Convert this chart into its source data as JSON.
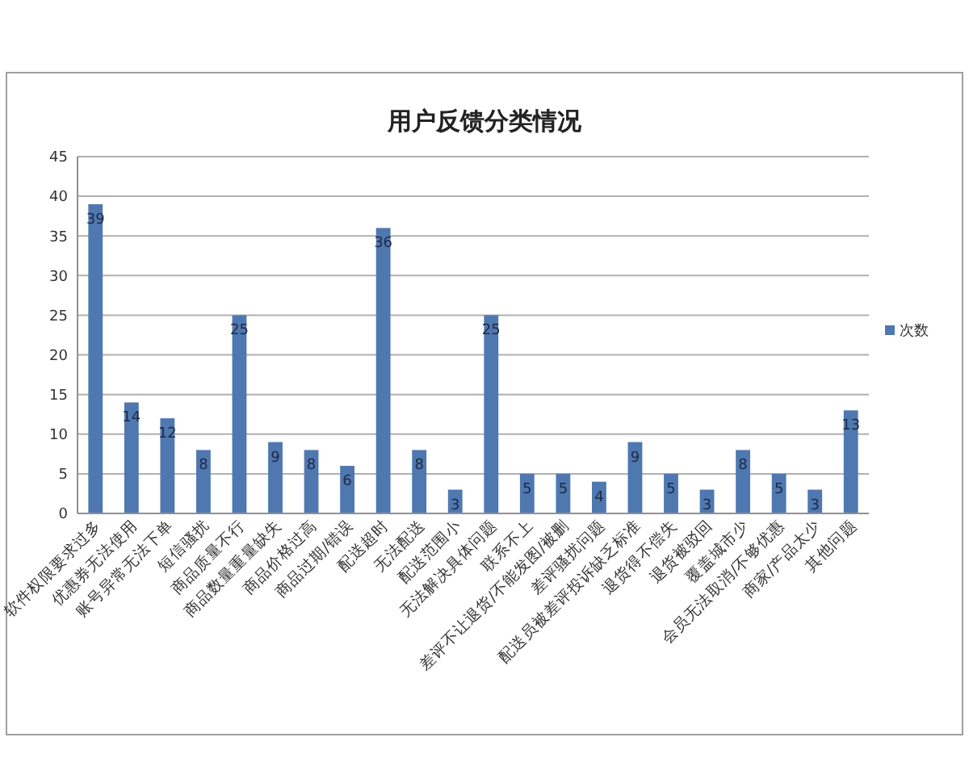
{
  "chart_data": {
    "type": "bar",
    "title": "用户反馈分类情况",
    "categories": [
      "软件权限要求过多",
      "优惠券无法使用",
      "账号异常无法下单",
      "短信骚扰",
      "商品质量不行",
      "商品数量重量缺失",
      "商品价格过高",
      "商品过期/错误",
      "配送超时",
      "无法配送",
      "配送范围小",
      "无法解决具体问题",
      "联系不上",
      "差评不让退货/不能发图/被删",
      "差评骚扰问题",
      "配送员被差评投诉缺乏标准",
      "退货得不偿失",
      "退货被驳回",
      "覆盖城市少",
      "会员无法取消/不够优惠",
      "商家/产品太少",
      "其他问题"
    ],
    "series": [
      {
        "name": "次数",
        "color": "#4f78b0",
        "values": [
          39,
          14,
          12,
          8,
          25,
          9,
          8,
          6,
          36,
          8,
          3,
          25,
          5,
          5,
          4,
          9,
          5,
          3,
          8,
          5,
          3,
          13
        ]
      }
    ],
    "ylim": [
      0,
      45
    ],
    "yticks": [
      0,
      5,
      10,
      15,
      20,
      25,
      30,
      35,
      40,
      45
    ],
    "grid": "y",
    "legend": "right",
    "data_labels": true
  }
}
